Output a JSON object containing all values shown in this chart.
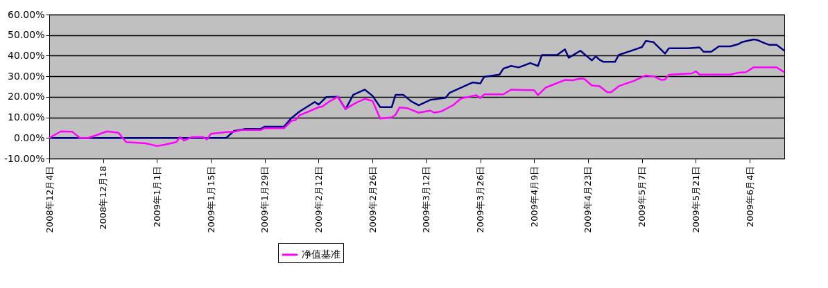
{
  "chart_data": {
    "type": "line",
    "xlim": [
      "2008-12-04",
      "2009-06-13"
    ],
    "xticks": [
      {
        "value": "2008-12-04",
        "label": "2008年12月4日"
      },
      {
        "value": "2008-12-18",
        "label": "2008年12月18"
      },
      {
        "value": "2009-01-01",
        "label": "2009年1月1日"
      },
      {
        "value": "2009-01-15",
        "label": "2009年1月15日"
      },
      {
        "value": "2009-01-29",
        "label": "2009年1月29日"
      },
      {
        "value": "2009-02-12",
        "label": "2009年2月12日"
      },
      {
        "value": "2009-02-26",
        "label": "2009年2月26日"
      },
      {
        "value": "2009-03-12",
        "label": "2009年3月12日"
      },
      {
        "value": "2009-03-26",
        "label": "2009年3月26日"
      },
      {
        "value": "2009-04-09",
        "label": "2009年4月9日"
      },
      {
        "value": "2009-04-23",
        "label": "2009年4月23日"
      },
      {
        "value": "2009-05-07",
        "label": "2009年5月7日"
      },
      {
        "value": "2009-05-21",
        "label": "2009年5月21日"
      },
      {
        "value": "2009-06-04",
        "label": "2009年6月4日"
      }
    ],
    "ylim": [
      -10,
      60
    ],
    "yticks": [
      {
        "value": -10,
        "label": "-10.00%"
      },
      {
        "value": 0,
        "label": "0.00%"
      },
      {
        "value": 10,
        "label": "10.00%"
      },
      {
        "value": 20,
        "label": "20.00%"
      },
      {
        "value": 30,
        "label": "30.00%"
      },
      {
        "value": 40,
        "label": "40.00%"
      },
      {
        "value": 50,
        "label": "50.00%"
      },
      {
        "value": 60,
        "label": "60.00%"
      }
    ],
    "grid": "y",
    "legend": "bottom",
    "line_style": "solid",
    "marker": "none",
    "series": [
      {
        "color": "#000080",
        "x": [
          "2008-12-04",
          "2009-01-19",
          "2009-01-21",
          "2009-01-24",
          "2009-01-28",
          "2009-01-29",
          "2009-02-03",
          "2009-02-05",
          "2009-02-07",
          "2009-02-11",
          "2009-02-12",
          "2009-02-14",
          "2009-02-17",
          "2009-02-19",
          "2009-02-21",
          "2009-02-24",
          "2009-02-26",
          "2009-02-28",
          "2009-03-03",
          "2009-03-04",
          "2009-03-06",
          "2009-03-08",
          "2009-03-10",
          "2009-03-13",
          "2009-03-17",
          "2009-03-18",
          "2009-03-24",
          "2009-03-26",
          "2009-03-27",
          "2009-03-31",
          "2009-04-01",
          "2009-04-03",
          "2009-04-05",
          "2009-04-08",
          "2009-04-10",
          "2009-04-11",
          "2009-04-15",
          "2009-04-17",
          "2009-04-18",
          "2009-04-21",
          "2009-04-24",
          "2009-04-25",
          "2009-04-26",
          "2009-04-27",
          "2009-04-30",
          "2009-05-01",
          "2009-05-05",
          "2009-05-07",
          "2009-05-08",
          "2009-05-10",
          "2009-05-13",
          "2009-05-14",
          "2009-05-19",
          "2009-05-22",
          "2009-05-23",
          "2009-05-25",
          "2009-05-27",
          "2009-05-30",
          "2009-06-01",
          "2009-06-02",
          "2009-06-05",
          "2009-06-06",
          "2009-06-08",
          "2009-06-09",
          "2009-06-11",
          "2009-06-13"
        ],
        "values": [
          0,
          0,
          3.4,
          4.4,
          4.5,
          5.5,
          5.5,
          9.8,
          12.8,
          17.5,
          16.2,
          19.9,
          20,
          14,
          21,
          23.5,
          20.5,
          15,
          15,
          21,
          21,
          17.9,
          15.9,
          18.5,
          19.5,
          21.9,
          27,
          26.5,
          29.7,
          30.8,
          33.7,
          35,
          34.3,
          36.4,
          35,
          40.3,
          40.4,
          43.1,
          39,
          42.4,
          37.7,
          39.7,
          38,
          37,
          37,
          40.4,
          42.9,
          44.2,
          47.1,
          46.6,
          41,
          43.6,
          43.6,
          44,
          41.9,
          41.9,
          44.5,
          44.5,
          45.6,
          46.6,
          47.9,
          47.6,
          46,
          45.3,
          45.3,
          42.4
        ]
      },
      {
        "name": "净值基准",
        "color": "#ff00ff",
        "x": [
          "2008-12-04",
          "2008-12-07",
          "2008-12-10",
          "2008-12-12",
          "2008-12-14",
          "2008-12-16",
          "2008-12-19",
          "2008-12-22",
          "2008-12-24",
          "2008-12-29",
          "2009-01-01",
          "2009-01-03",
          "2009-01-06",
          "2009-01-07",
          "2009-01-08",
          "2009-01-10",
          "2009-01-13",
          "2009-01-14",
          "2009-01-15",
          "2009-01-19",
          "2009-01-21",
          "2009-01-23",
          "2009-01-28",
          "2009-01-29",
          "2009-02-03",
          "2009-02-05",
          "2009-02-06",
          "2009-02-07",
          "2009-02-12",
          "2009-02-13",
          "2009-02-15",
          "2009-02-17",
          "2009-02-19",
          "2009-02-22",
          "2009-02-24",
          "2009-02-26",
          "2009-02-28",
          "2009-03-03",
          "2009-03-04",
          "2009-03-05",
          "2009-03-07",
          "2009-03-10",
          "2009-03-13",
          "2009-03-14",
          "2009-03-16",
          "2009-03-19",
          "2009-03-21",
          "2009-03-25",
          "2009-03-26",
          "2009-03-27",
          "2009-04-01",
          "2009-04-03",
          "2009-04-09",
          "2009-04-10",
          "2009-04-12",
          "2009-04-17",
          "2009-04-19",
          "2009-04-21",
          "2009-04-22",
          "2009-04-24",
          "2009-04-26",
          "2009-04-28",
          "2009-04-29",
          "2009-05-01",
          "2009-05-05",
          "2009-05-08",
          "2009-05-10",
          "2009-05-12",
          "2009-05-13",
          "2009-05-14",
          "2009-05-16",
          "2009-05-20",
          "2009-05-21",
          "2009-05-22",
          "2009-05-30",
          "2009-06-01",
          "2009-06-03",
          "2009-06-05",
          "2009-06-11",
          "2009-06-13"
        ],
        "values": [
          0,
          3.2,
          3,
          0,
          0,
          1.2,
          3.2,
          2.5,
          -2,
          -2.6,
          -3.9,
          -3.3,
          -2,
          0.4,
          -1.3,
          0.4,
          0.4,
          -0.7,
          2,
          2.9,
          3,
          3.9,
          3.9,
          4.7,
          4.7,
          8.4,
          8.7,
          11,
          14.9,
          15.3,
          18,
          20,
          14.1,
          17.4,
          19,
          18,
          9.4,
          10,
          11.3,
          14.8,
          14.5,
          12.3,
          13.3,
          12.3,
          13,
          16,
          19.2,
          20.8,
          19.4,
          21.2,
          21.2,
          23.5,
          23.2,
          20.8,
          24.5,
          28.2,
          28,
          28.9,
          28.8,
          25.5,
          25.2,
          22.2,
          22.2,
          25.2,
          27.8,
          30.4,
          30,
          28.2,
          28.4,
          30.7,
          31,
          31.4,
          32.4,
          30.8,
          30.8,
          31.7,
          32,
          34.3,
          34.3,
          32
        ]
      }
    ]
  }
}
